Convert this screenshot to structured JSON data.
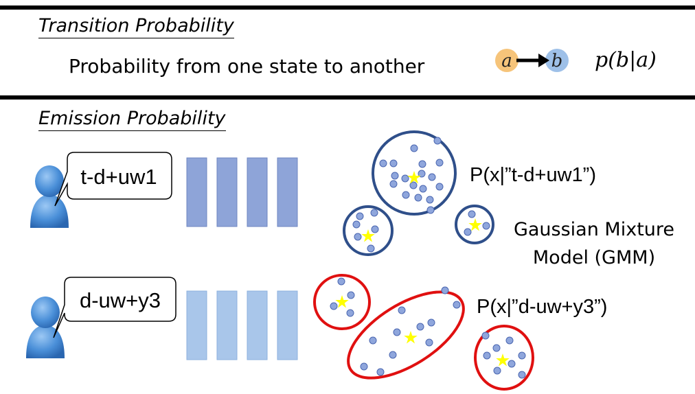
{
  "transition": {
    "title": "Transition Probability",
    "description": "Probability from one state to another",
    "node_a": "a",
    "node_b": "b",
    "formula": "p(b|a)"
  },
  "emission": {
    "title": "Emission Probability",
    "state1": {
      "label": "t-d+uw1",
      "prob": "P(x|”t-d+uw1”)",
      "color": "#2f4f8a"
    },
    "state2": {
      "label": "d-uw+y3",
      "prob": "P(x|”d-uw+y3”)",
      "color": "#e01010"
    },
    "gmm_line1": "Gaussian Mixture",
    "gmm_line2": "Model (GMM)"
  },
  "colors": {
    "node_a": "#f6c47a",
    "node_b": "#9ec0e8",
    "dot": "#8fa6dc",
    "star": "#ffff00",
    "bar_dark": "#8ea4d8",
    "bar_light": "#a9c6ea",
    "person": "#4a8fd8"
  }
}
